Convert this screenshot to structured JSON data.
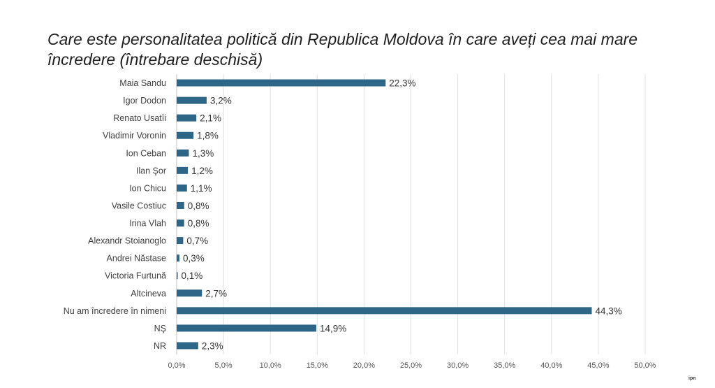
{
  "title": "Care este personalitatea politică din Republica Moldova în care aveți cea mai mare încredere (întrebare deschisă)",
  "logo_text": "ipn",
  "bar_color": "#2e6687",
  "chart_data": {
    "type": "bar",
    "orientation": "horizontal",
    "categories": [
      "Maia Sandu",
      "Igor Dodon",
      "Renato Usatîi",
      "Vladimir Voronin",
      "Ion Ceban",
      "Ilan Şor",
      "Ion Chicu",
      "Vasile Costiuc",
      "Irina Vlah",
      "Alexandr Stoianoglo",
      "Andrei Năstase",
      "Victoria Furtună",
      "Altcineva",
      "Nu am încredere în nimeni",
      "NŞ",
      "NR"
    ],
    "values": [
      22.3,
      3.2,
      2.1,
      1.8,
      1.3,
      1.2,
      1.1,
      0.8,
      0.8,
      0.7,
      0.3,
      0.1,
      2.7,
      44.3,
      14.9,
      2.3
    ],
    "value_labels": [
      "22,3%",
      "3,2%",
      "2,1%",
      "1,8%",
      "1,3%",
      "1,2%",
      "1,1%",
      "0,8%",
      "0,8%",
      "0,7%",
      "0,3%",
      "0,1%",
      "2,7%",
      "44,3%",
      "14,9%",
      "2,3%"
    ],
    "xlim": [
      0,
      50
    ],
    "xticks": [
      0,
      5,
      10,
      15,
      20,
      25,
      30,
      35,
      40,
      45,
      50
    ],
    "xtick_labels": [
      "0,0%",
      "5,0%",
      "10,0%",
      "15,0%",
      "20,0%",
      "25,0%",
      "30,0%",
      "35,0%",
      "40,0%",
      "45,0%",
      "50,0%"
    ],
    "grid": true,
    "legend": false
  }
}
